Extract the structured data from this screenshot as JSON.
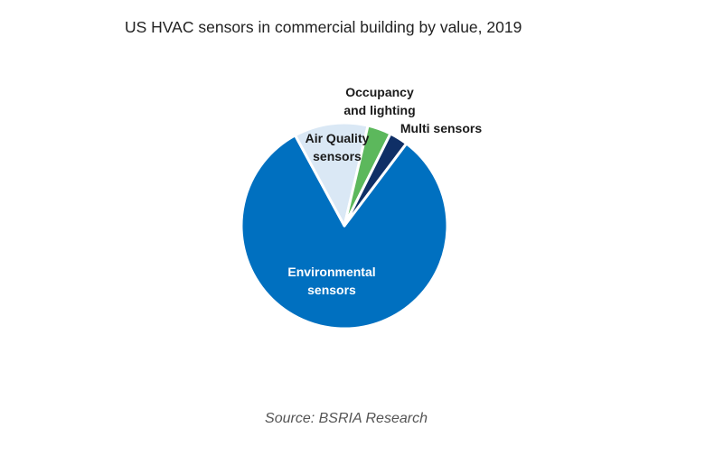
{
  "chart_data": {
    "type": "pie",
    "title": "US HVAC sensors in commercial building by value, 2019",
    "slices": [
      {
        "label_lines": [
          "Environmental",
          "sensors"
        ],
        "value": 81.8,
        "color": "#0070C0",
        "label_color": "#FFFFFF"
      },
      {
        "label_lines": [
          "Air Quality",
          "sensors"
        ],
        "value": 11.6,
        "color": "#DAE8F5",
        "label_color": "#1A1A1A"
      },
      {
        "label_lines": [
          "Occupancy",
          "and lighting"
        ],
        "value": 3.7,
        "color": "#5CB85C",
        "label_color": "#1A1A1A"
      },
      {
        "label_lines": [
          "Multi sensors"
        ],
        "value": 2.9,
        "color": "#0F2F66",
        "label_color": "#1A1A1A"
      }
    ],
    "legend": "none"
  },
  "source": "Source: BSRIA Research"
}
